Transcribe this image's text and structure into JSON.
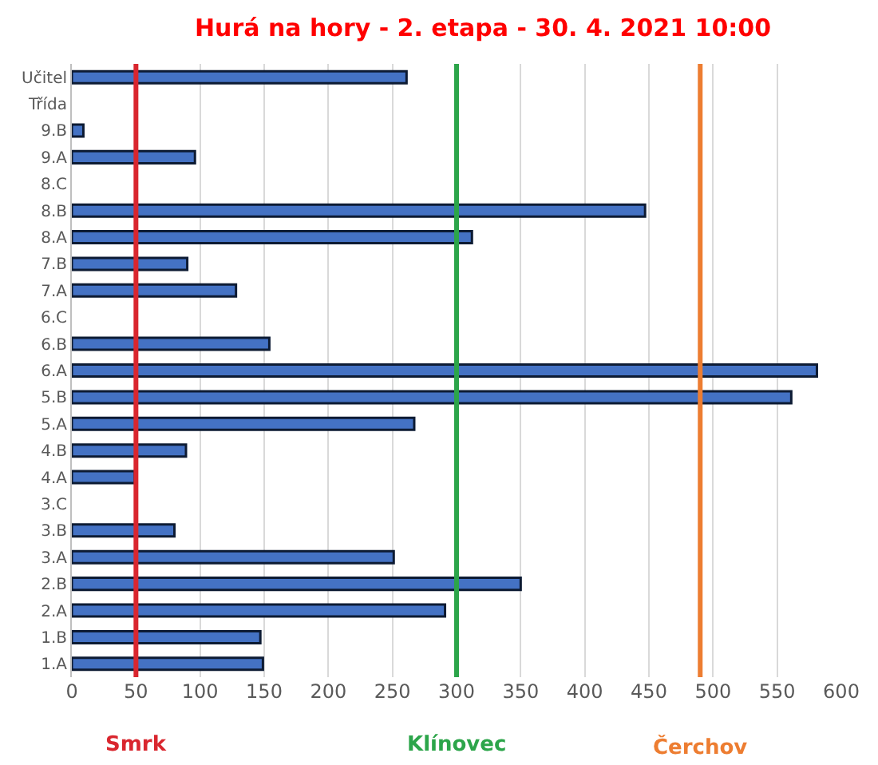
{
  "chart_data": {
    "type": "bar",
    "orientation": "horizontal",
    "title": "Hurá na hory - 2. etapa - 30. 4. 2021 10:00",
    "categories": [
      "Učitel",
      "Třída",
      "9.B",
      "9.A",
      "8.C",
      "8.B",
      "8.A",
      "7.B",
      "7.A",
      "6.C",
      "6.B",
      "6.A",
      "5.B",
      "5.A",
      "4.B",
      "4.A",
      "3.C",
      "3.B",
      "3.A",
      "2.B",
      "2.A",
      "1.B",
      "1.A"
    ],
    "values": [
      261,
      null,
      9,
      96,
      null,
      447,
      312,
      90,
      128,
      null,
      154,
      581,
      561,
      267,
      89,
      49,
      null,
      80,
      251,
      350,
      291,
      147,
      149
    ],
    "color": "#4472c4",
    "xlim": [
      0,
      600
    ],
    "xticks": [
      0,
      50,
      100,
      150,
      200,
      250,
      300,
      350,
      400,
      450,
      500,
      550,
      600
    ],
    "grid": "x",
    "ref_lines": [
      {
        "axis": "x",
        "value": 50,
        "label": "Smrk",
        "color": "#d9262e"
      },
      {
        "axis": "x",
        "value": 300,
        "label": "Klínovec",
        "color": "#2ca54a"
      },
      {
        "axis": "x",
        "value": 490,
        "label": "Čerchov",
        "color": "#ed7d31"
      }
    ]
  }
}
